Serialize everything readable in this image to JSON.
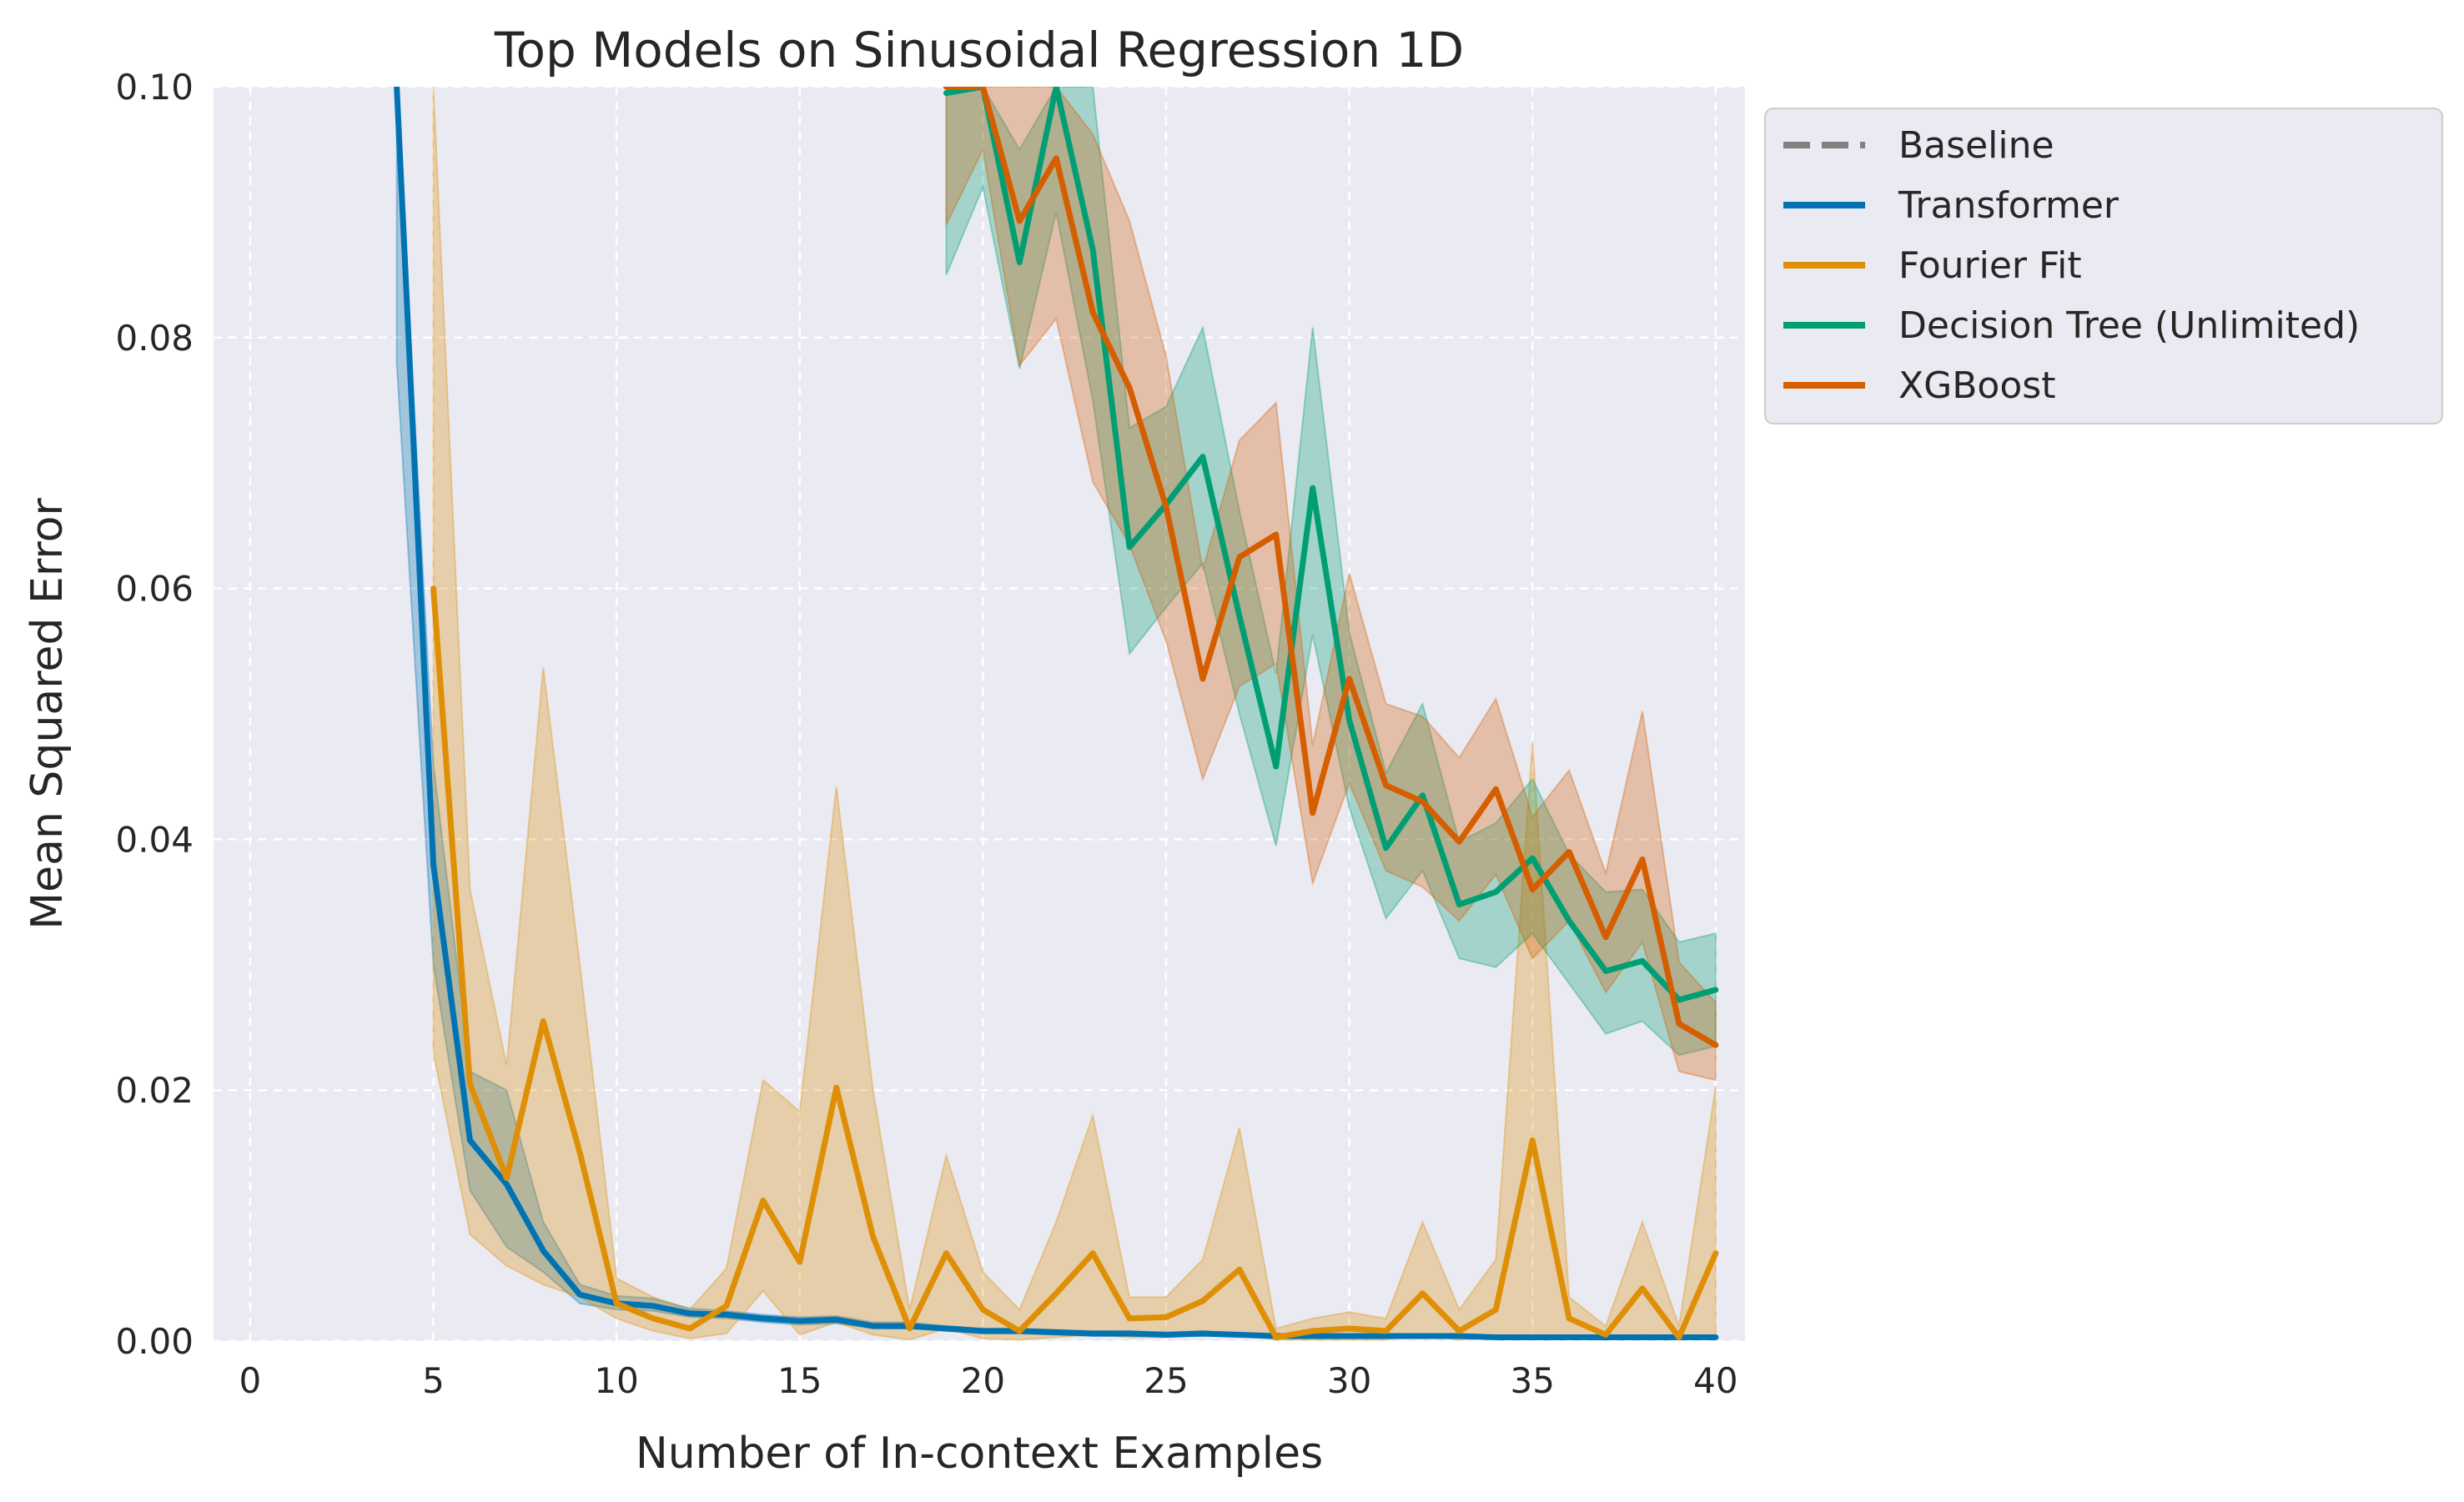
{
  "chart_data": {
    "type": "line",
    "title": "Top Models on Sinusoidal Regression 1D",
    "xlabel": "Number of In-context Examples",
    "ylabel": "Mean Squared Error",
    "xlim": [
      -1,
      40.8
    ],
    "ylim": [
      0,
      0.1
    ],
    "xticks": [
      0,
      5,
      10,
      15,
      20,
      25,
      30,
      35,
      40
    ],
    "xtick_labels": [
      "0",
      "5",
      "10",
      "15",
      "20",
      "25",
      "30",
      "35",
      "40"
    ],
    "yticks": [
      0,
      0.02,
      0.04,
      0.06,
      0.08,
      0.1
    ],
    "ytick_labels": [
      "0.00",
      "0.02",
      "0.04",
      "0.06",
      "0.08",
      "0.10"
    ],
    "grid": true,
    "legend_position": "outside-top-right",
    "series": [
      {
        "name": "Baseline",
        "color": "#808080",
        "style": "dashed",
        "x": [],
        "values": []
      },
      {
        "name": "Transformer",
        "color": "#0173b2",
        "style": "solid",
        "x": [
          4,
          5,
          6,
          7,
          8,
          9,
          10,
          11,
          12,
          13,
          14,
          15,
          16,
          17,
          18,
          19,
          20,
          21,
          22,
          23,
          24,
          25,
          26,
          27,
          28,
          29,
          30,
          31,
          32,
          33,
          34,
          35,
          36,
          37,
          38,
          39,
          40
        ],
        "values": [
          0.1,
          0.038,
          0.016,
          0.0125,
          0.0072,
          0.0037,
          0.003,
          0.0028,
          0.0022,
          0.0021,
          0.0018,
          0.0016,
          0.0017,
          0.0012,
          0.0012,
          0.001,
          0.0008,
          0.0008,
          0.0007,
          0.0006,
          0.0006,
          0.0005,
          0.0006,
          0.0005,
          0.0004,
          0.0004,
          0.0004,
          0.0004,
          0.0004,
          0.0004,
          0.0003,
          0.0003,
          0.0003,
          0.0003,
          0.0003,
          0.0003,
          0.0003
        ],
        "lower": [
          0.078,
          0.03,
          0.012,
          0.0075,
          0.0055,
          0.003,
          0.0025,
          0.0024,
          0.0019,
          0.0018,
          0.0015,
          0.0013,
          0.0014,
          0.001,
          0.001,
          0.0008,
          0.0006,
          0.0006,
          0.0005,
          0.0004,
          0.0004,
          0.0004,
          0.0004,
          0.0004,
          0.0003,
          0.0003,
          0.0003,
          0.0003,
          0.0003,
          0.0003,
          0.0002,
          0.0002,
          0.0002,
          0.0002,
          0.0002,
          0.0002,
          0.0002
        ],
        "upper": [
          0.1,
          0.046,
          0.0215,
          0.02,
          0.0095,
          0.0045,
          0.0036,
          0.0034,
          0.0026,
          0.0024,
          0.0021,
          0.0019,
          0.002,
          0.0015,
          0.0015,
          0.0012,
          0.001,
          0.001,
          0.0009,
          0.0008,
          0.0008,
          0.0007,
          0.0008,
          0.0006,
          0.0005,
          0.0005,
          0.0005,
          0.0005,
          0.0005,
          0.0005,
          0.0004,
          0.0004,
          0.0004,
          0.0004,
          0.0004,
          0.0004,
          0.0004
        ]
      },
      {
        "name": "Fourier Fit",
        "color": "#de8f05",
        "style": "solid",
        "x": [
          5,
          6,
          7,
          8,
          9,
          10,
          11,
          12,
          13,
          14,
          15,
          16,
          17,
          18,
          19,
          20,
          21,
          22,
          23,
          24,
          25,
          26,
          27,
          28,
          29,
          30,
          31,
          32,
          33,
          34,
          35,
          36,
          37,
          38,
          39,
          40
        ],
        "values": [
          0.06,
          0.0205,
          0.013,
          0.0255,
          0.015,
          0.003,
          0.0018,
          0.001,
          0.0028,
          0.0112,
          0.0063,
          0.0202,
          0.0083,
          0.001,
          0.007,
          0.0025,
          0.0008,
          0.0038,
          0.007,
          0.0018,
          0.0019,
          0.0032,
          0.0057,
          0.0003,
          0.0008,
          0.001,
          0.0008,
          0.0038,
          0.0008,
          0.0025,
          0.016,
          0.0018,
          0.0005,
          0.0042,
          0.0003,
          0.007
        ],
        "lower": [
          0.023,
          0.0085,
          0.006,
          0.0045,
          0.0035,
          0.0018,
          0.0008,
          0.0002,
          0.0006,
          0.004,
          0.0005,
          0.0015,
          0.0005,
          0.0001,
          0.001,
          0.0002,
          0.0001,
          0.0003,
          0.0005,
          0.0003,
          0.0003,
          0.0005,
          0.0005,
          0.0001,
          0.0001,
          0.0001,
          0.0001,
          0.0005,
          0.0001,
          0.0003,
          0.0003,
          0.0002,
          0.0001,
          0.0005,
          0.0001,
          0.0005
        ],
        "upper": [
          0.1,
          0.036,
          0.022,
          0.0537,
          0.03,
          0.005,
          0.0035,
          0.0025,
          0.0058,
          0.0208,
          0.0183,
          0.0442,
          0.02,
          0.0025,
          0.0148,
          0.0055,
          0.0025,
          0.0095,
          0.018,
          0.0035,
          0.0035,
          0.0065,
          0.017,
          0.001,
          0.0018,
          0.0023,
          0.0018,
          0.0095,
          0.0025,
          0.0065,
          0.0477,
          0.0035,
          0.0012,
          0.0095,
          0.0012,
          0.0203
        ]
      },
      {
        "name": "Decision Tree (Unlimited)",
        "color": "#029e73",
        "style": "solid",
        "x": [
          19,
          20,
          21,
          22,
          23,
          24,
          25,
          26,
          27,
          28,
          29,
          30,
          31,
          32,
          33,
          34,
          35,
          36,
          37,
          38,
          39,
          40
        ],
        "values": [
          0.0995,
          0.1,
          0.086,
          0.1,
          0.087,
          0.0633,
          0.0667,
          0.0705,
          0.0578,
          0.0458,
          0.068,
          0.0495,
          0.0393,
          0.0435,
          0.0348,
          0.0358,
          0.0385,
          0.0335,
          0.0295,
          0.0303,
          0.0272,
          0.028
        ],
        "lower": [
          0.085,
          0.092,
          0.0775,
          0.09,
          0.075,
          0.0548,
          0.0585,
          0.062,
          0.05,
          0.0395,
          0.0563,
          0.0425,
          0.0337,
          0.0375,
          0.0305,
          0.0298,
          0.0325,
          0.0285,
          0.0245,
          0.0255,
          0.0228,
          0.0235
        ],
        "upper": [
          0.1,
          0.1,
          0.095,
          0.1,
          0.1,
          0.0728,
          0.0745,
          0.0808,
          0.0662,
          0.0532,
          0.0808,
          0.0565,
          0.0453,
          0.0508,
          0.0398,
          0.0413,
          0.0448,
          0.0388,
          0.0358,
          0.036,
          0.0318,
          0.0325
        ]
      },
      {
        "name": "XGBoost",
        "color": "#d55e00",
        "style": "solid",
        "x": [
          19,
          20,
          21,
          22,
          23,
          24,
          25,
          26,
          27,
          28,
          29,
          30,
          31,
          32,
          33,
          34,
          35,
          36,
          37,
          38,
          39,
          40
        ],
        "values": [
          0.1,
          0.1,
          0.0893,
          0.0943,
          0.082,
          0.076,
          0.0665,
          0.0528,
          0.0625,
          0.0643,
          0.0421,
          0.0528,
          0.0443,
          0.043,
          0.0398,
          0.044,
          0.036,
          0.039,
          0.0322,
          0.0384,
          0.0253,
          0.0236
        ],
        "lower": [
          0.089,
          0.095,
          0.0778,
          0.0815,
          0.0685,
          0.0635,
          0.0558,
          0.0448,
          0.0522,
          0.054,
          0.0365,
          0.0445,
          0.0375,
          0.0362,
          0.0335,
          0.0372,
          0.0305,
          0.0335,
          0.0278,
          0.0318,
          0.0215,
          0.0208
        ],
        "upper": [
          0.1,
          0.1,
          0.1,
          0.1,
          0.0962,
          0.0893,
          0.0785,
          0.0615,
          0.0718,
          0.0748,
          0.0475,
          0.0612,
          0.0508,
          0.0498,
          0.0465,
          0.0512,
          0.0418,
          0.0455,
          0.0373,
          0.0502,
          0.0302,
          0.027
        ]
      }
    ]
  }
}
